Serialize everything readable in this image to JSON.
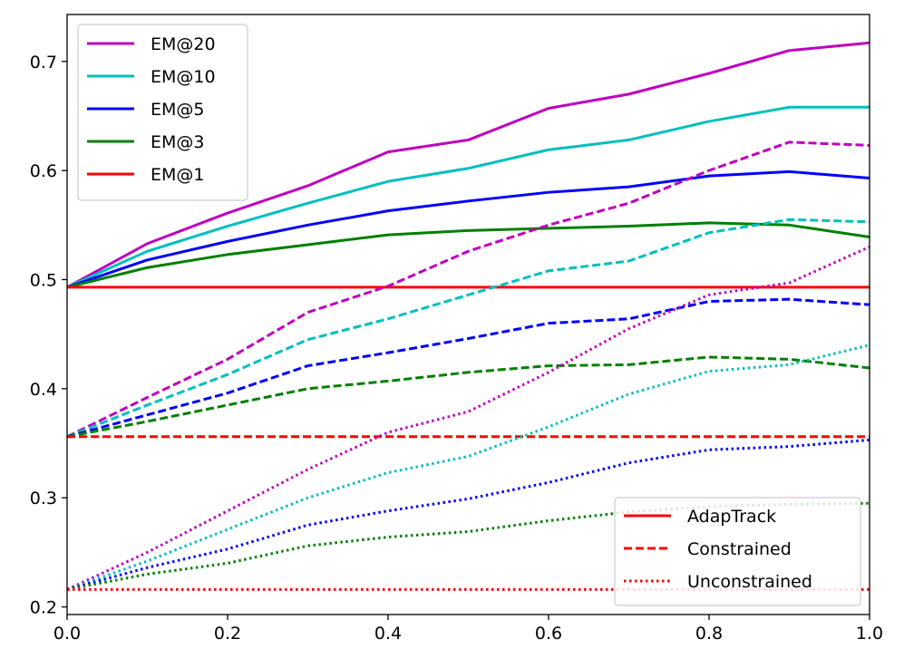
{
  "chart_data": {
    "type": "line",
    "title": "",
    "xlabel": "",
    "ylabel": "",
    "xlim": [
      0.0,
      1.0
    ],
    "ylim": [
      0.193,
      0.743
    ],
    "x": [
      0.0,
      0.1,
      0.2,
      0.3,
      0.4,
      0.5,
      0.6,
      0.7,
      0.8,
      0.9,
      1.0
    ],
    "xticks": [
      0.0,
      0.2,
      0.4,
      0.6,
      0.8,
      1.0
    ],
    "xtick_labels": [
      "0.0",
      "0.2",
      "0.4",
      "0.6",
      "0.8",
      "1.0"
    ],
    "yticks": [
      0.2,
      0.3,
      0.4,
      0.5,
      0.6,
      0.7
    ],
    "ytick_labels": [
      "0.2",
      "0.3",
      "0.4",
      "0.5",
      "0.6",
      "0.7"
    ],
    "grid": false,
    "metric_legend": {
      "placement": "upper-left",
      "entries": [
        {
          "label": "EM@20",
          "color": "#bf00bf"
        },
        {
          "label": "EM@10",
          "color": "#00bfbf"
        },
        {
          "label": "EM@5",
          "color": "#0000ff"
        },
        {
          "label": "EM@3",
          "color": "#008000"
        },
        {
          "label": "EM@1",
          "color": "#ff0000"
        }
      ]
    },
    "method_legend": {
      "placement": "lower-right",
      "entries": [
        {
          "label": "AdapTrack",
          "style": "solid",
          "color": "#ff0000"
        },
        {
          "label": "Constrained",
          "style": "dashed",
          "color": "#ff0000"
        },
        {
          "label": "Unconstrained",
          "style": "dotted",
          "color": "#ff0000"
        }
      ]
    },
    "series": [
      {
        "name": "EM@20 AdapTrack",
        "metric": "EM@20",
        "method": "AdapTrack",
        "color": "#bf00bf",
        "style": "solid",
        "values": [
          0.493,
          0.533,
          0.561,
          0.586,
          0.617,
          0.628,
          0.657,
          0.67,
          0.689,
          0.71,
          0.717
        ]
      },
      {
        "name": "EM@10 AdapTrack",
        "metric": "EM@10",
        "method": "AdapTrack",
        "color": "#00bfbf",
        "style": "solid",
        "values": [
          0.493,
          0.526,
          0.549,
          0.57,
          0.59,
          0.602,
          0.619,
          0.628,
          0.645,
          0.658,
          0.658
        ]
      },
      {
        "name": "EM@5 AdapTrack",
        "metric": "EM@5",
        "method": "AdapTrack",
        "color": "#0000ff",
        "style": "solid",
        "values": [
          0.493,
          0.518,
          0.535,
          0.55,
          0.563,
          0.572,
          0.58,
          0.585,
          0.595,
          0.599,
          0.593
        ]
      },
      {
        "name": "EM@3 AdapTrack",
        "metric": "EM@3",
        "method": "AdapTrack",
        "color": "#008000",
        "style": "solid",
        "values": [
          0.493,
          0.511,
          0.523,
          0.532,
          0.541,
          0.545,
          0.547,
          0.549,
          0.552,
          0.55,
          0.539
        ]
      },
      {
        "name": "EM@1 AdapTrack",
        "metric": "EM@1",
        "method": "AdapTrack",
        "color": "#ff0000",
        "style": "solid",
        "values": [
          0.493,
          0.493,
          0.493,
          0.493,
          0.493,
          0.493,
          0.493,
          0.493,
          0.493,
          0.493,
          0.493
        ]
      },
      {
        "name": "EM@20 Constrained",
        "metric": "EM@20",
        "method": "Constrained",
        "color": "#bf00bf",
        "style": "dashed",
        "values": [
          0.356,
          0.392,
          0.427,
          0.47,
          0.494,
          0.526,
          0.55,
          0.57,
          0.6,
          0.626,
          0.623
        ]
      },
      {
        "name": "EM@10 Constrained",
        "metric": "EM@10",
        "method": "Constrained",
        "color": "#00bfbf",
        "style": "dashed",
        "values": [
          0.356,
          0.385,
          0.413,
          0.445,
          0.464,
          0.486,
          0.508,
          0.517,
          0.543,
          0.555,
          0.553
        ]
      },
      {
        "name": "EM@5 Constrained",
        "metric": "EM@5",
        "method": "Constrained",
        "color": "#0000ff",
        "style": "dashed",
        "values": [
          0.356,
          0.376,
          0.396,
          0.421,
          0.433,
          0.446,
          0.46,
          0.464,
          0.48,
          0.482,
          0.477
        ]
      },
      {
        "name": "EM@3 Constrained",
        "metric": "EM@3",
        "method": "Constrained",
        "color": "#008000",
        "style": "dashed",
        "values": [
          0.356,
          0.37,
          0.385,
          0.4,
          0.407,
          0.415,
          0.421,
          0.422,
          0.429,
          0.427,
          0.419
        ]
      },
      {
        "name": "EM@1 Constrained",
        "metric": "EM@1",
        "method": "Constrained",
        "color": "#ff0000",
        "style": "dashed",
        "values": [
          0.356,
          0.356,
          0.356,
          0.356,
          0.356,
          0.356,
          0.356,
          0.356,
          0.356,
          0.356,
          0.356
        ]
      },
      {
        "name": "EM@20 Unconstrained",
        "metric": "EM@20",
        "method": "Unconstrained",
        "color": "#bf00bf",
        "style": "dotted",
        "values": [
          0.216,
          0.25,
          0.288,
          0.326,
          0.36,
          0.379,
          0.415,
          0.455,
          0.486,
          0.497,
          0.53
        ]
      },
      {
        "name": "EM@10 Unconstrained",
        "metric": "EM@10",
        "method": "Unconstrained",
        "color": "#00bfbf",
        "style": "dotted",
        "values": [
          0.216,
          0.242,
          0.271,
          0.3,
          0.323,
          0.338,
          0.365,
          0.395,
          0.416,
          0.422,
          0.44
        ]
      },
      {
        "name": "EM@5 Unconstrained",
        "metric": "EM@5",
        "method": "Unconstrained",
        "color": "#0000ff",
        "style": "dotted",
        "values": [
          0.216,
          0.236,
          0.253,
          0.275,
          0.288,
          0.299,
          0.314,
          0.332,
          0.344,
          0.347,
          0.353
        ]
      },
      {
        "name": "EM@3 Unconstrained",
        "metric": "EM@3",
        "method": "Unconstrained",
        "color": "#008000",
        "style": "dotted",
        "values": [
          0.216,
          0.23,
          0.24,
          0.256,
          0.264,
          0.269,
          0.279,
          0.287,
          0.292,
          0.294,
          0.295
        ]
      },
      {
        "name": "EM@1 Unconstrained",
        "metric": "EM@1",
        "method": "Unconstrained",
        "color": "#ff0000",
        "style": "dotted",
        "values": [
          0.216,
          0.216,
          0.216,
          0.216,
          0.216,
          0.216,
          0.216,
          0.216,
          0.216,
          0.216,
          0.216
        ]
      }
    ]
  }
}
